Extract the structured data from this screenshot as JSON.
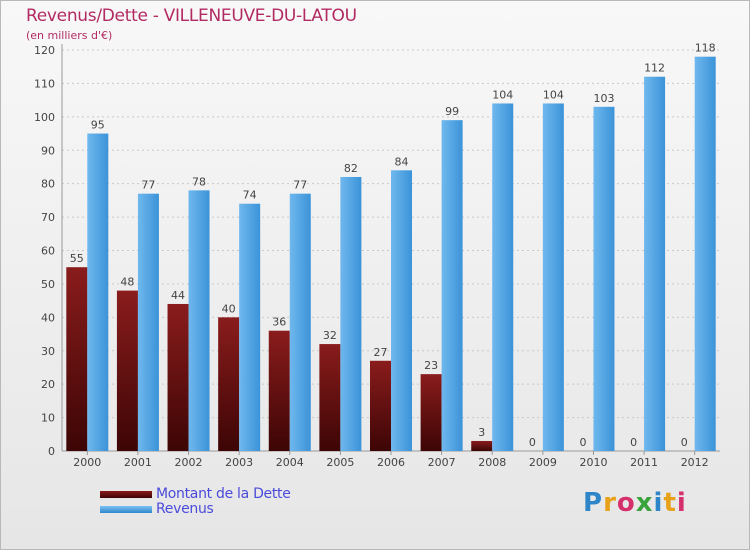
{
  "chart_data": {
    "type": "bar",
    "title": "Revenus/Dette - VILLENEUVE-DU-LATOU",
    "subtitle": "(en milliers d'€)",
    "categories": [
      "2000",
      "2001",
      "2002",
      "2003",
      "2004",
      "2005",
      "2006",
      "2007",
      "2008",
      "2009",
      "2010",
      "2011",
      "2012"
    ],
    "series": [
      {
        "name": "Montant de la Dette",
        "values": [
          55,
          48,
          44,
          40,
          36,
          32,
          27,
          23,
          3,
          0,
          0,
          0,
          0
        ],
        "color": "#7a1515"
      },
      {
        "name": "Revenus",
        "values": [
          95,
          77,
          78,
          74,
          77,
          82,
          84,
          99,
          104,
          104,
          103,
          112,
          118
        ],
        "color": "#4ba3e3"
      }
    ],
    "ylim": [
      0,
      120
    ],
    "yticks": [
      0,
      10,
      20,
      30,
      40,
      50,
      60,
      70,
      80,
      90,
      100,
      110,
      120
    ],
    "grid": true,
    "legend": "bottom-left",
    "data_labels": true
  },
  "logo": {
    "letters": [
      "P",
      "r",
      "o",
      "x",
      "i",
      "t",
      "i"
    ],
    "colors": [
      "#2e86c8",
      "#e8a21a",
      "#d5306c",
      "#39a33c",
      "#2e86c8",
      "#e8a21a",
      "#d5306c"
    ]
  }
}
